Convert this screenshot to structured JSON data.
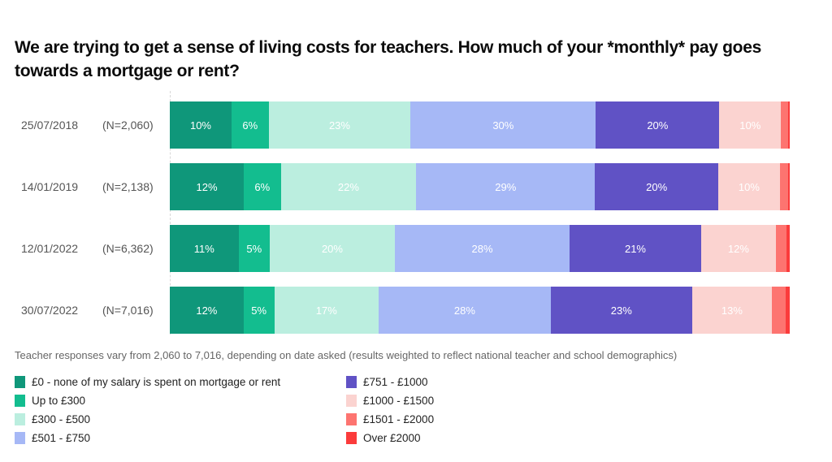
{
  "title": "We are trying to get a sense of living costs for teachers. How much of your *monthly*  pay goes towards a mortgage or rent?",
  "note": "Teacher responses vary from 2,060 to 7,016, depending on date asked (results weighted to reflect national teacher and school demographics)",
  "colors": [
    "#0f977a",
    "#13bd8f",
    "#bbeedf",
    "#a6b8f6",
    "#6052c5",
    "#fbd3d0",
    "#fd7470",
    "#fb3b3b"
  ],
  "legend": [
    {
      "label": "£0 - none of my salary is spent on mortgage or rent",
      "color": "#0f977a"
    },
    {
      "label": "Up to £300",
      "color": "#13bd8f"
    },
    {
      "label": "£300 - £500",
      "color": "#bbeedf"
    },
    {
      "label": "£501 - £750",
      "color": "#a6b8f6"
    },
    {
      "label": "£751 - £1000",
      "color": "#6052c5"
    },
    {
      "label": "£1000 - £1500",
      "color": "#fbd3d0"
    },
    {
      "label": "£1501 - £2000",
      "color": "#fd7470"
    },
    {
      "label": "Over £2000",
      "color": "#fb3b3b"
    }
  ],
  "rows": [
    {
      "date": "25/07/2018",
      "n": "(N=2,060)",
      "labels": [
        "10%",
        "6%",
        "23%",
        "30%",
        "20%",
        "10%",
        "",
        ""
      ]
    },
    {
      "date": "14/01/2019",
      "n": "(N=2,138)",
      "labels": [
        "12%",
        "6%",
        "22%",
        "29%",
        "20%",
        "10%",
        "",
        ""
      ]
    },
    {
      "date": "12/01/2022",
      "n": "(N=6,362)",
      "labels": [
        "11%",
        "5%",
        "20%",
        "28%",
        "21%",
        "12%",
        "",
        ""
      ]
    },
    {
      "date": "30/07/2022",
      "n": "(N=7,016)",
      "labels": [
        "12%",
        "5%",
        "17%",
        "28%",
        "23%",
        "13%",
        "",
        ""
      ]
    }
  ],
  "chart_data": {
    "type": "bar",
    "orientation": "horizontal",
    "stacked": true,
    "normalized": true,
    "title": "We are trying to get a sense of living costs for teachers. How much of your *monthly*  pay goes towards a mortgage or rent?",
    "xlabel": "",
    "ylabel": "",
    "xlim": [
      0,
      100
    ],
    "grid": false,
    "legend_position": "bottom",
    "categories": [
      "25/07/2018 (N=2,060)",
      "14/01/2019 (N=2,138)",
      "12/01/2022 (N=6,362)",
      "30/07/2022 (N=7,016)"
    ],
    "series": [
      {
        "name": "£0 - none of my salary is spent on mortgage or rent",
        "color": "#0f977a",
        "values": [
          10,
          12,
          11,
          12
        ]
      },
      {
        "name": "Up to £300",
        "color": "#13bd8f",
        "values": [
          6,
          6,
          5,
          5
        ]
      },
      {
        "name": "£300 - £500",
        "color": "#bbeedf",
        "values": [
          23,
          22,
          20,
          17
        ]
      },
      {
        "name": "£501 - £750",
        "color": "#a6b8f6",
        "values": [
          30,
          29,
          28,
          28
        ]
      },
      {
        "name": "£751 - £1000",
        "color": "#6052c5",
        "values": [
          20,
          20,
          21,
          23
        ]
      },
      {
        "name": "£1000 - £1500",
        "color": "#fbd3d0",
        "values": [
          10,
          10,
          12,
          13
        ]
      },
      {
        "name": "£1501 - £2000",
        "color": "#fd7470",
        "values": [
          1.2,
          1.3,
          1.7,
          2.2
        ]
      },
      {
        "name": "Over £2000",
        "color": "#fb3b3b",
        "values": [
          0.2,
          0.3,
          0.5,
          0.7
        ]
      }
    ],
    "annotation": "Teacher responses vary from 2,060 to 7,016, depending on date asked (results weighted to reflect national teacher and school demographics)"
  }
}
